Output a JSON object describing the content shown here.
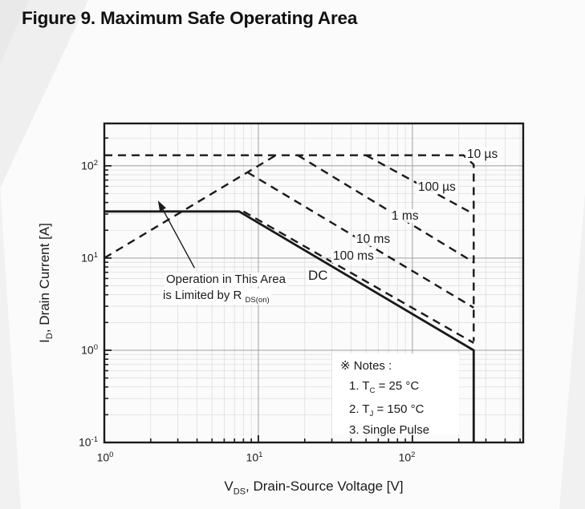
{
  "page": {
    "title": "Figure 9. Maximum Safe Operating Area"
  },
  "chart_data": {
    "type": "line",
    "title": "Figure 9. Maximum Safe Operating Area",
    "x_scale": "log",
    "y_scale": "log",
    "xlim": [
      1,
      524
    ],
    "ylim": [
      0.1,
      288
    ],
    "grid": true,
    "ink_color": "#1a1a1a",
    "grid_major_color": "#a8a8a8",
    "grid_minor_color": "#dedede",
    "xlabel": {
      "pre": "V",
      "sub": "DS",
      "post": ", Drain-Source Voltage [V]"
    },
    "ylabel": {
      "pre": "I",
      "sub": "D",
      "post": ", Drain Current [A]"
    },
    "x_ticks": [
      {
        "base": "10",
        "exp": "0",
        "value": 1
      },
      {
        "base": "10",
        "exp": "1",
        "value": 10
      },
      {
        "base": "10",
        "exp": "2",
        "value": 100
      }
    ],
    "y_ticks": [
      {
        "base": "10",
        "exp": "2",
        "value": 100
      },
      {
        "base": "10",
        "exp": "1",
        "value": 10
      },
      {
        "base": "10",
        "exp": "0",
        "value": 1
      },
      {
        "base": "10",
        "exp": "-1",
        "value": 0.1
      }
    ],
    "series": [
      {
        "name": "10 µs",
        "style": "dashed",
        "points": [
          [
            1,
            130
          ],
          [
            215,
            130
          ],
          [
            250,
            103
          ],
          [
            250,
            1.25
          ]
        ]
      },
      {
        "name": "100 µs",
        "style": "dashed",
        "points": [
          [
            50,
            130
          ],
          [
            250,
            30
          ]
        ]
      },
      {
        "name": "1 ms",
        "style": "dashed",
        "points": [
          [
            18,
            130
          ],
          [
            250,
            9
          ]
        ]
      },
      {
        "name": "10 ms",
        "style": "dashed",
        "points": [
          [
            8.5,
            85
          ],
          [
            250,
            2.9
          ]
        ]
      },
      {
        "name": "100 ms",
        "style": "dashed",
        "points": [
          [
            8,
            32
          ],
          [
            250,
            1.2
          ]
        ]
      },
      {
        "name": "DC",
        "style": "solid",
        "points": [
          [
            1,
            32
          ],
          [
            7.5,
            32
          ],
          [
            250,
            1
          ],
          [
            250,
            0.1
          ]
        ]
      },
      {
        "name": "RDS(on) limit line",
        "style": "dashed",
        "points": [
          [
            1,
            10
          ],
          [
            13,
            130
          ]
        ]
      }
    ],
    "annotation": {
      "line1": "Operation in This Area",
      "line2_pre": "is Limited by R ",
      "line2_sub": "DS(on)",
      "arrow": {
        "from_v": 3.85,
        "from_i": 7.8,
        "to_v": 2.23,
        "to_i": 42
      }
    },
    "notes": {
      "header": "※ Notes :",
      "items": [
        {
          "pre": "1. T",
          "sub": "C",
          "post": " = 25 °C"
        },
        {
          "pre": "2. T",
          "sub": "J",
          "post": " = 150 °C"
        },
        {
          "pre": "3. Single Pulse",
          "sub": "",
          "post": ""
        }
      ]
    }
  }
}
